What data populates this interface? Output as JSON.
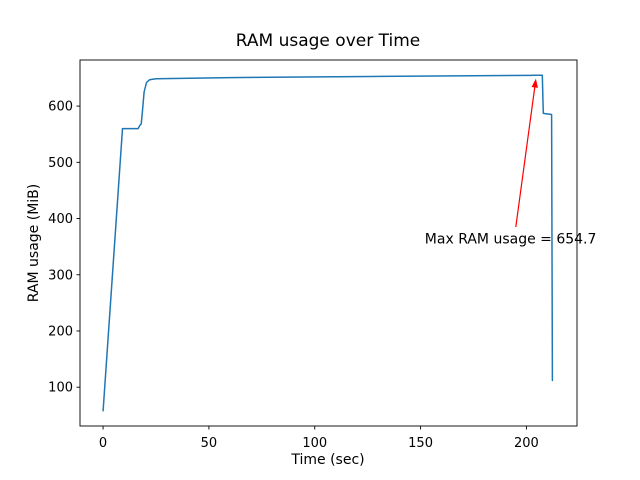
{
  "chart_data": {
    "type": "line",
    "title": "RAM usage over Time",
    "xlabel": "Time (sec)",
    "ylabel": "RAM usage (MiB)",
    "xticks": [
      0,
      50,
      100,
      150,
      200
    ],
    "yticks": [
      100,
      200,
      300,
      400,
      500,
      600
    ],
    "xlim": [
      -10.9,
      223.9
    ],
    "ylim": [
      31,
      682
    ],
    "grid": false,
    "legend": false,
    "background": "#ffffff",
    "axes_color": "#000000",
    "max_ram_usage": 654.7,
    "series": [
      {
        "name": "RAM usage",
        "color": "#1f77b4",
        "line_width": 1.5,
        "points": [
          [
            0,
            58
          ],
          [
            9.2,
            560
          ],
          [
            16.6,
            560
          ],
          [
            17.4,
            566
          ],
          [
            18.0,
            568
          ],
          [
            18.6,
            590
          ],
          [
            19.4,
            625
          ],
          [
            20.5,
            642
          ],
          [
            22,
            647
          ],
          [
            25,
            648.8
          ],
          [
            60,
            650.7
          ],
          [
            126,
            652.6
          ],
          [
            202,
            654.6
          ],
          [
            204,
            654.7
          ],
          [
            207.5,
            654.7
          ],
          [
            208,
            587
          ],
          [
            211.9,
            585
          ],
          [
            212.3,
            112
          ]
        ]
      }
    ],
    "annotation": {
      "text": "Max RAM usage = 654.7",
      "color": "#ff0000",
      "label_xy": [
        152,
        356
      ],
      "arrow_tail_xy": [
        195,
        385
      ],
      "arrow_tip_xy": [
        204.5,
        649
      ]
    }
  }
}
